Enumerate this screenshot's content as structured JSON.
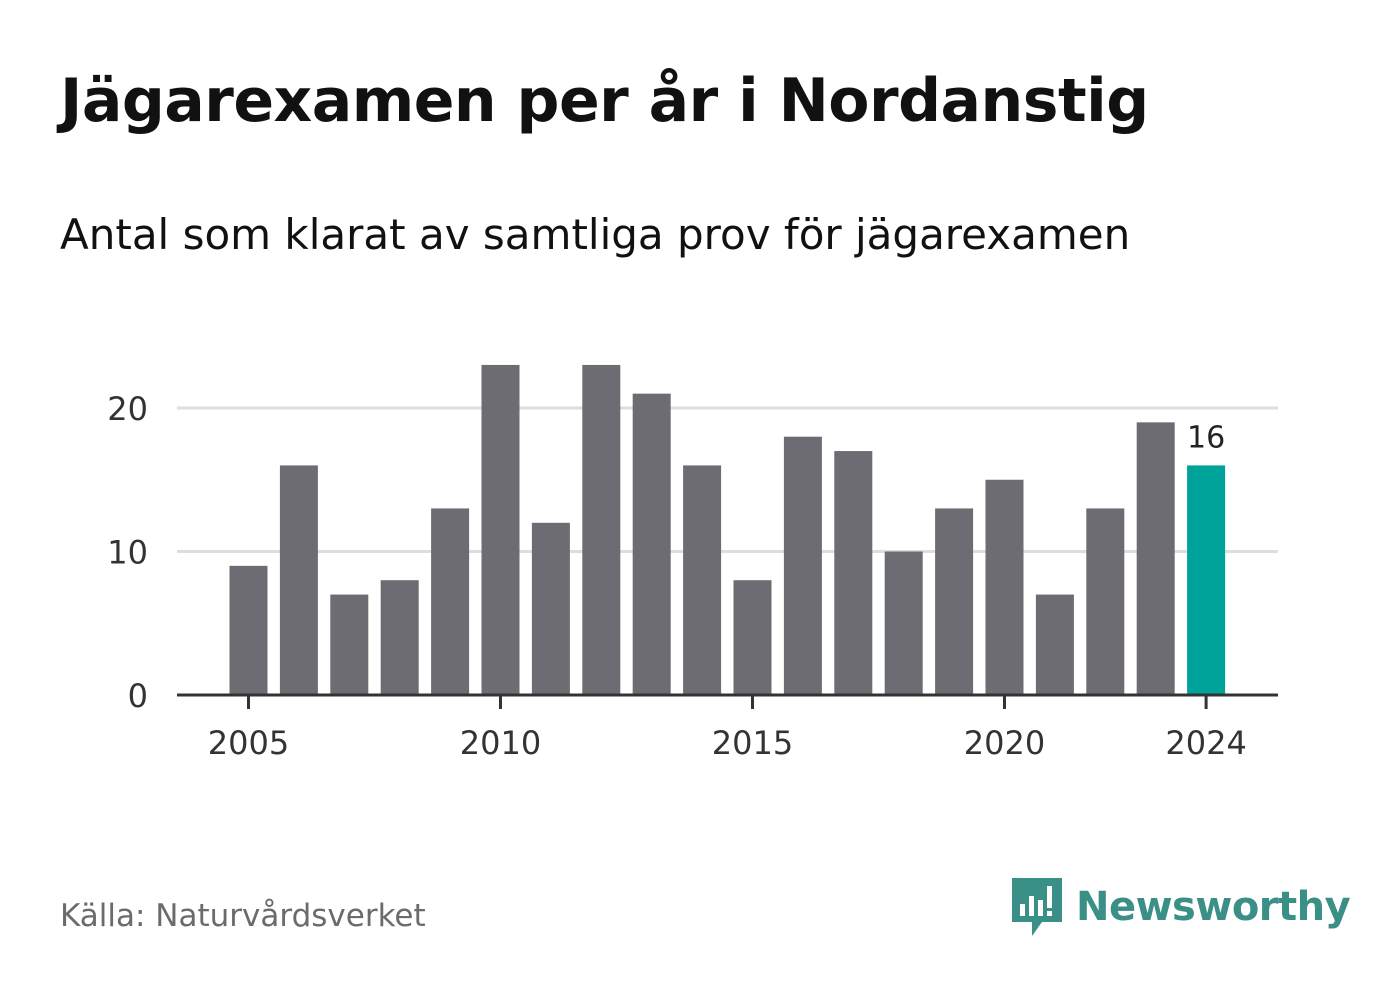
{
  "title": "Jägarexamen per år i Nordanstig",
  "subtitle": "Antal som klarat av samtliga prov för jägarexamen",
  "source": "Källa: Naturvårdsverket",
  "brand": {
    "name": "Newsworthy",
    "color": "#3a8f86",
    "icon": "newsworthy-logo-icon"
  },
  "colors": {
    "bar": "#6d6c72",
    "highlight": "#00a39a",
    "grid": "#dddddd",
    "axis": "#333333"
  },
  "chart_data": {
    "type": "bar",
    "title": "Jägarexamen per år i Nordanstig",
    "subtitle": "Antal som klarat av samtliga prov för jägarexamen",
    "xlabel": "",
    "ylabel": "",
    "categories": [
      2005,
      2006,
      2007,
      2008,
      2009,
      2010,
      2011,
      2012,
      2013,
      2014,
      2015,
      2016,
      2017,
      2018,
      2019,
      2020,
      2021,
      2022,
      2023,
      2024
    ],
    "values": [
      9,
      16,
      7,
      8,
      13,
      23,
      12,
      23,
      21,
      16,
      8,
      18,
      17,
      10,
      13,
      15,
      7,
      13,
      19,
      16
    ],
    "highlight_category": 2024,
    "data_labels": [
      {
        "category": 2024,
        "text": "16"
      }
    ],
    "x_ticks": [
      "2005",
      "2010",
      "2015",
      "2020",
      "2024"
    ],
    "y_ticks": [
      "0",
      "10",
      "20"
    ],
    "ylim": [
      0,
      23
    ],
    "grid": "horizontal"
  }
}
